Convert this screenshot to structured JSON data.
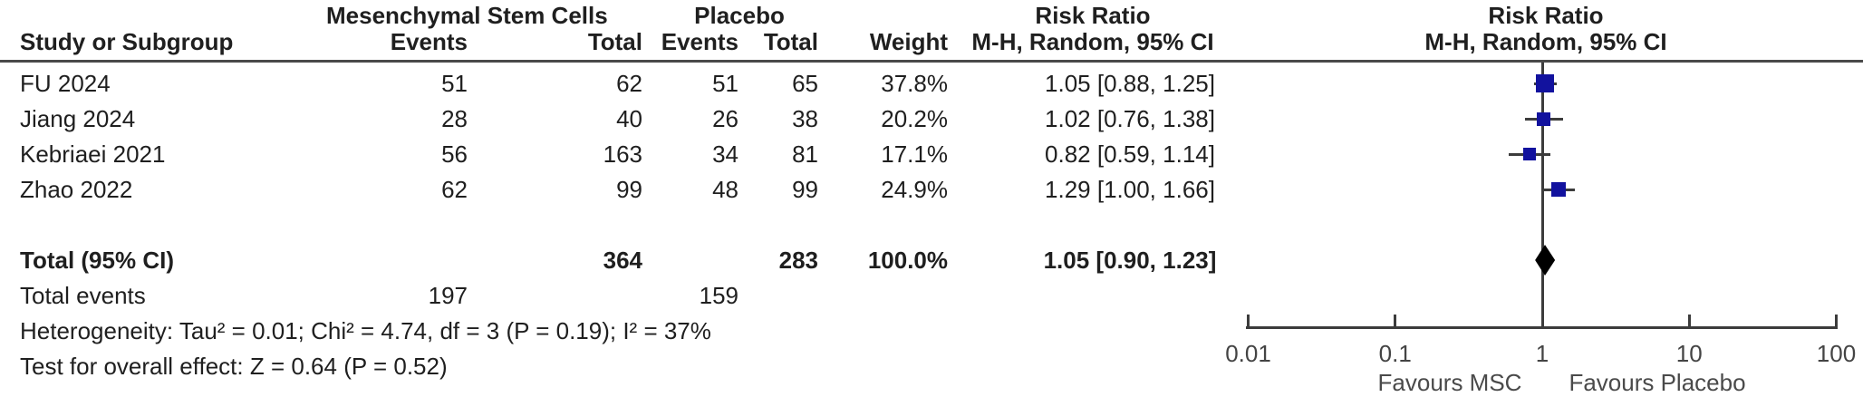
{
  "table": {
    "group1_header": "Mesenchymal Stem Cells",
    "group2_header": "Placebo",
    "headers": {
      "study": "Study or Subgroup",
      "events1": "Events",
      "total1": "Total",
      "events2": "Events",
      "total2": "Total",
      "weight": "Weight",
      "rr_line1": "Risk Ratio",
      "rr_line2": "M-H, Random, 95% CI"
    },
    "plot_header": {
      "line1": "Risk Ratio",
      "line2": "M-H, Random, 95% CI"
    },
    "rows": [
      {
        "study": "FU 2024",
        "events1": "51",
        "total1": "62",
        "events2": "51",
        "total2": "65",
        "weight": "37.8%",
        "ci": "1.05 [0.88, 1.25]"
      },
      {
        "study": "Jiang 2024",
        "events1": "28",
        "total1": "40",
        "events2": "26",
        "total2": "38",
        "weight": "20.2%",
        "ci": "1.02 [0.76, 1.38]"
      },
      {
        "study": "Kebriaei 2021",
        "events1": "56",
        "total1": "163",
        "events2": "34",
        "total2": "81",
        "weight": "17.1%",
        "ci": "0.82 [0.59, 1.14]"
      },
      {
        "study": "Zhao 2022",
        "events1": "62",
        "total1": "99",
        "events2": "48",
        "total2": "99",
        "weight": "24.9%",
        "ci": "1.29 [1.00, 1.66]"
      }
    ],
    "total_row": {
      "label": "Total (95% CI)",
      "total1": "364",
      "total2": "283",
      "weight": "100.0%",
      "ci": "1.05 [0.90, 1.23]"
    },
    "total_events": {
      "label": "Total events",
      "events1": "197",
      "events2": "159"
    },
    "heterogeneity": "Heterogeneity: Tau² = 0.01; Chi² = 4.74, df = 3 (P = 0.19); I² = 37%",
    "overall_effect": "Test for overall effect: Z = 0.64 (P = 0.52)"
  },
  "plot": {
    "axis_tick_labels": [
      "0.01",
      "0.1",
      "1",
      "10",
      "100"
    ],
    "favours_left": "Favours MSC",
    "favours_right": "Favours Placebo",
    "marker_color": "#12129e",
    "line_color": "#3c3c3c",
    "diamond_color": "#000000"
  },
  "chart_data": {
    "type": "forest",
    "x_scale": "log10",
    "x_ticks": [
      0.01,
      0.1,
      1,
      10,
      100
    ],
    "x_range": [
      0.01,
      100
    ],
    "effect_measure": "Risk Ratio, M-H, Random, 95% CI",
    "studies": [
      {
        "name": "FU 2024",
        "rr": 1.05,
        "ci_low": 0.88,
        "ci_high": 1.25,
        "weight_pct": 37.8
      },
      {
        "name": "Jiang 2024",
        "rr": 1.02,
        "ci_low": 0.76,
        "ci_high": 1.38,
        "weight_pct": 20.2
      },
      {
        "name": "Kebriaei 2021",
        "rr": 0.82,
        "ci_low": 0.59,
        "ci_high": 1.14,
        "weight_pct": 17.1
      },
      {
        "name": "Zhao 2022",
        "rr": 1.29,
        "ci_low": 1.0,
        "ci_high": 1.66,
        "weight_pct": 24.9
      }
    ],
    "total": {
      "rr": 1.05,
      "ci_low": 0.9,
      "ci_high": 1.23
    },
    "heterogeneity": {
      "tau2": 0.01,
      "chi2": 4.74,
      "df": 3,
      "p": 0.19,
      "i2_pct": 37
    },
    "overall_effect": {
      "z": 0.64,
      "p": 0.52
    }
  }
}
